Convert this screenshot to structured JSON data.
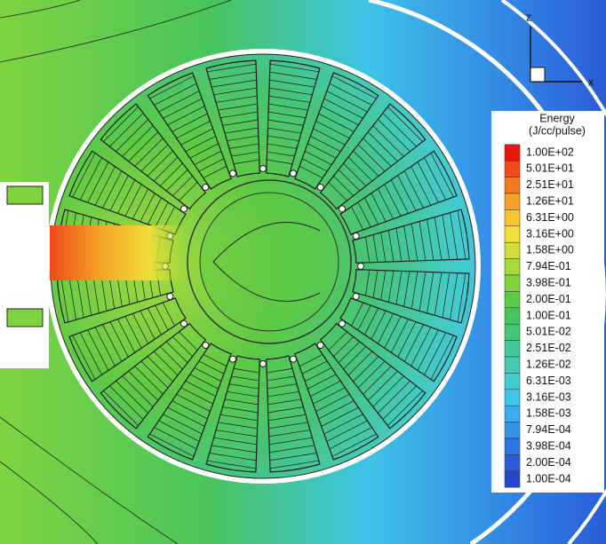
{
  "chart_data": {
    "type": "contour",
    "legend_title": "Energy",
    "legend_unit": "(J/cc/pulse)",
    "axis_labels": {
      "vertical": "z",
      "horizontal": "x"
    },
    "levels": [
      {
        "value": 100,
        "label": "1.00E+02"
      },
      {
        "value": 50.1,
        "label": "5.01E+01"
      },
      {
        "value": 25.1,
        "label": "2.51E+01"
      },
      {
        "value": 12.6,
        "label": "1.26E+01"
      },
      {
        "value": 6.31,
        "label": "6.31E+00"
      },
      {
        "value": 3.16,
        "label": "3.16E+00"
      },
      {
        "value": 1.58,
        "label": "1.58E+00"
      },
      {
        "value": 0.794,
        "label": "7.94E-01"
      },
      {
        "value": 0.398,
        "label": "3.98E-01"
      },
      {
        "value": 0.2,
        "label": "2.00E-01"
      },
      {
        "value": 0.1,
        "label": "1.00E-01"
      },
      {
        "value": 0.0501,
        "label": "5.01E-02"
      },
      {
        "value": 0.0251,
        "label": "2.51E-02"
      },
      {
        "value": 0.0126,
        "label": "1.26E-02"
      },
      {
        "value": 0.00631,
        "label": "6.31E-03"
      },
      {
        "value": 0.00316,
        "label": "3.16E-03"
      },
      {
        "value": 0.00158,
        "label": "1.58E-03"
      },
      {
        "value": 0.000794,
        "label": "7.94E-04"
      },
      {
        "value": 0.000398,
        "label": "3.98E-04"
      },
      {
        "value": 0.0002,
        "label": "2.00E-04"
      },
      {
        "value": 0.0001,
        "label": "1.00E-04"
      }
    ],
    "colors": [
      "#e8160e",
      "#ee4a1a",
      "#f07a20",
      "#f5a226",
      "#f7c32e",
      "#efdf38",
      "#cfe03c",
      "#a6da3e",
      "#80d23f",
      "#5dc944",
      "#48c45c",
      "#46c47a",
      "#45c797",
      "#46c9b3",
      "#43cbd0",
      "#3ec4e6",
      "#3aadea",
      "#3590e6",
      "#2f74e0",
      "#2a5cd8",
      "#2446cc"
    ]
  }
}
